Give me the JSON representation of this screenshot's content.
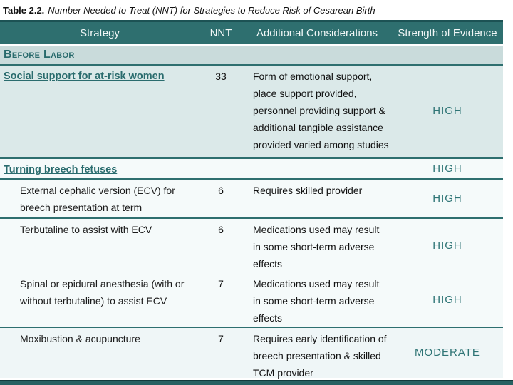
{
  "title": {
    "label": "Table 2.2.",
    "caption": "Number Needed to Treat (NNT) for Strategies to Reduce Risk of Cesarean Birth"
  },
  "table": {
    "columns": [
      "Strategy",
      "NNT",
      "Additional Considerations",
      "Strength of Evidence"
    ],
    "section": "Before Labor",
    "rows": [
      {
        "strategy": "Social support for at-risk women",
        "nnt": "33",
        "considerations": "Form of emotional support,\nplace support provided,\npersonnel providing support &\nadditional tangible assistance\nprovided varied among studies",
        "evidence": "HIGH"
      },
      {
        "strategy": "Turning breech fetuses",
        "nnt": "",
        "considerations": "",
        "evidence": "HIGH"
      },
      {
        "strategy": "External cephalic version (ECV) for\nbreech presentation at term",
        "nnt": "6",
        "considerations": "Requires skilled provider",
        "evidence": "HIGH"
      },
      {
        "strategy": "Terbutaline to assist with ECV",
        "nnt": "6",
        "considerations": "Medications used may result\nin some short-term adverse\neffects",
        "evidence": "HIGH"
      },
      {
        "strategy": "Spinal or epidural anesthesia (with or\nwithout terbutaline) to assist ECV",
        "nnt": "7",
        "considerations": "Medications used may result\nin some short-term adverse\neffects",
        "evidence": "HIGH"
      },
      {
        "strategy": "Moxibustion & acupuncture",
        "nnt": "7",
        "considerations": "Requires early identification of\nbreech presentation & skilled\nTCM provider",
        "evidence": "MODERATE"
      }
    ]
  },
  "colors": {
    "header_teal": "#2e6f6f",
    "dark_teal_border": "#1c5254",
    "section_bg": "#c9dbdb",
    "highlight_row_bg": "#dbe9e9",
    "row_bg": "#f5fafa",
    "teal_text": "#2a6c6e",
    "evidence_text": "#2e7475",
    "footer_bar": "#276162"
  }
}
